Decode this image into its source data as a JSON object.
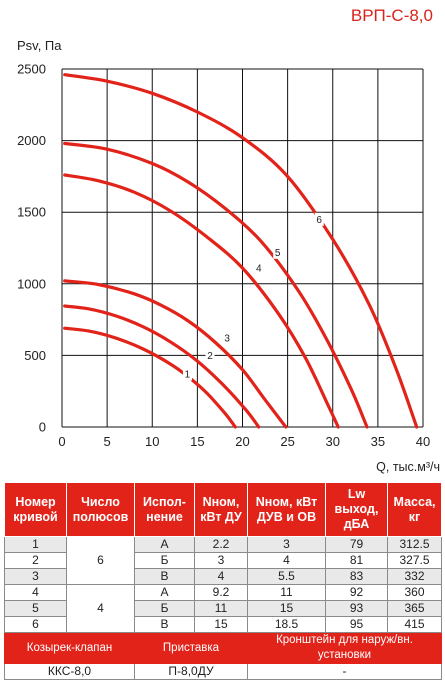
{
  "model": "ВРП-С-8,0",
  "chart_data": {
    "type": "line",
    "title": "",
    "xlabel": "Q, тыс.м³/ч",
    "ylabel": "Psv, Па",
    "xlim": [
      0,
      40
    ],
    "ylim": [
      0,
      2500
    ],
    "xticks": [
      0,
      5,
      10,
      15,
      20,
      25,
      30,
      35,
      40
    ],
    "yticks": [
      0,
      500,
      1000,
      1500,
      2000,
      2500
    ],
    "grid": true,
    "color": "#e2231a",
    "series": [
      {
        "name": "1",
        "label_at": [
          13.9,
          370
        ],
        "points": [
          [
            0.3,
            690
          ],
          [
            3,
            670
          ],
          [
            6,
            620
          ],
          [
            9,
            545
          ],
          [
            12,
            440
          ],
          [
            14,
            350
          ],
          [
            16,
            240
          ],
          [
            18,
            100
          ],
          [
            19.2,
            0
          ]
        ]
      },
      {
        "name": "2",
        "label_at": [
          16.4,
          500
        ],
        "points": [
          [
            0.3,
            845
          ],
          [
            3,
            825
          ],
          [
            6,
            775
          ],
          [
            9,
            700
          ],
          [
            12,
            595
          ],
          [
            15,
            460
          ],
          [
            18,
            285
          ],
          [
            20.5,
            110
          ],
          [
            21.8,
            0
          ]
        ]
      },
      {
        "name": "3",
        "label_at": [
          18.3,
          620
        ],
        "points": [
          [
            0.3,
            1020
          ],
          [
            4,
            995
          ],
          [
            8,
            930
          ],
          [
            11,
            850
          ],
          [
            14,
            740
          ],
          [
            17,
            590
          ],
          [
            20,
            400
          ],
          [
            22.5,
            190
          ],
          [
            24.8,
            0
          ]
        ]
      },
      {
        "name": "4",
        "label_at": [
          21.8,
          1110
        ],
        "points": [
          [
            0.3,
            1760
          ],
          [
            4,
            1720
          ],
          [
            8,
            1640
          ],
          [
            12,
            1510
          ],
          [
            16,
            1330
          ],
          [
            20,
            1110
          ],
          [
            24,
            790
          ],
          [
            27,
            480
          ],
          [
            29.5,
            150
          ],
          [
            30.6,
            0
          ]
        ]
      },
      {
        "name": "5",
        "label_at": [
          23.9,
          1220
        ],
        "points": [
          [
            0.3,
            1980
          ],
          [
            5,
            1940
          ],
          [
            10,
            1840
          ],
          [
            14,
            1710
          ],
          [
            18,
            1530
          ],
          [
            22,
            1300
          ],
          [
            26,
            970
          ],
          [
            29,
            650
          ],
          [
            32,
            270
          ],
          [
            33.8,
            0
          ]
        ]
      },
      {
        "name": "6",
        "label_at": [
          28.5,
          1450
        ],
        "points": [
          [
            0.3,
            2460
          ],
          [
            5,
            2415
          ],
          [
            10,
            2330
          ],
          [
            15,
            2200
          ],
          [
            20,
            2020
          ],
          [
            25,
            1750
          ],
          [
            30,
            1310
          ],
          [
            34,
            860
          ],
          [
            37,
            410
          ],
          [
            39.3,
            0
          ]
        ]
      }
    ]
  },
  "table": {
    "headers": [
      "Номер кривой",
      "Число полюсов",
      "Испол-нение",
      "Nном, кВт ДУ",
      "Nном, кВт ДУВ и ОВ",
      "Lw выход, дБА",
      "Масса, кг"
    ],
    "rows": [
      {
        "curve": "1",
        "ver": "А",
        "n_du": "2.2",
        "n_duv": "3",
        "lw": "79",
        "mass": "312.5"
      },
      {
        "curve": "2",
        "ver": "Б",
        "n_du": "3",
        "n_duv": "4",
        "lw": "81",
        "mass": "327.5"
      },
      {
        "curve": "3",
        "ver": "В",
        "n_du": "4",
        "n_duv": "5.5",
        "lw": "83",
        "mass": "332"
      },
      {
        "curve": "4",
        "ver": "А",
        "n_du": "9.2",
        "n_duv": "11",
        "lw": "92",
        "mass": "360"
      },
      {
        "curve": "5",
        "ver": "Б",
        "n_du": "11",
        "n_duv": "15",
        "lw": "93",
        "mass": "365"
      },
      {
        "curve": "6",
        "ver": "В",
        "n_du": "15",
        "n_duv": "18.5",
        "lw": "95",
        "mass": "415"
      }
    ],
    "poles": [
      "6",
      "4"
    ],
    "accessories": {
      "headers": [
        "Козырек-клапан",
        "Приставка",
        "Кронштейн для наруж/вн. установки"
      ],
      "values": [
        "ККС-8,0",
        "П-8,0ДУ",
        "-"
      ]
    }
  }
}
